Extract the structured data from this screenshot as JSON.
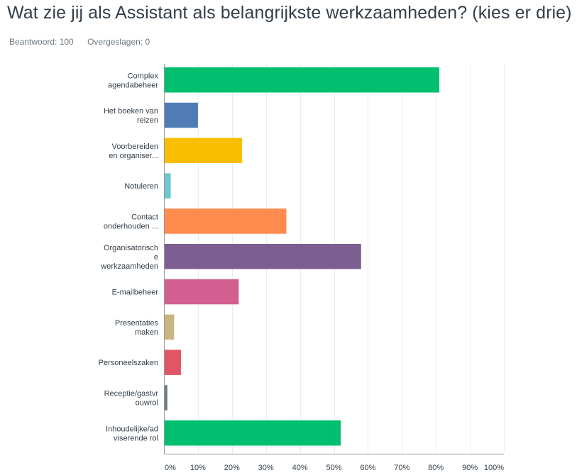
{
  "question": {
    "title": "Wat zie jij als Assistant als belangrijkste werkzaamheden? (kies er drie)",
    "answered": "Beantwoord: 100",
    "skipped": "Overgeslagen: 0"
  },
  "chart_data": {
    "type": "bar",
    "orientation": "horizontal",
    "grid": true,
    "xlim": [
      0,
      100
    ],
    "x_unit": "%",
    "x_ticks": [
      "0%",
      "10%",
      "20%",
      "30%",
      "40%",
      "50%",
      "60%",
      "70%",
      "80%",
      "90%",
      "100%"
    ],
    "categories": [
      {
        "label": [
          "Complex",
          "agendabeheer"
        ],
        "value": 81,
        "color": "#00bf6f"
      },
      {
        "label": [
          "Het boeken van",
          "reizen"
        ],
        "value": 10,
        "color": "#507cb6"
      },
      {
        "label": [
          "Voorbereiden",
          "en organiser..."
        ],
        "value": 23,
        "color": "#f9be00"
      },
      {
        "label": [
          "Notuleren"
        ],
        "value": 2,
        "color": "#6bc8cd"
      },
      {
        "label": [
          "Contact",
          "onderhouden ..."
        ],
        "value": 36,
        "color": "#ff8b4f"
      },
      {
        "label": [
          "Organisatorisch",
          "e",
          "werkzaamheden"
        ],
        "value": 58,
        "color": "#7d5e90"
      },
      {
        "label": [
          "E-mailbeheer"
        ],
        "value": 22,
        "color": "#d25f90"
      },
      {
        "label": [
          "Presentaties",
          "maken"
        ],
        "value": 3,
        "color": "#c8b580"
      },
      {
        "label": [
          "Personeelszaken"
        ],
        "value": 5,
        "color": "#e05666"
      },
      {
        "label": [
          "Receptie/gastvr",
          "ouwrol"
        ],
        "value": 1,
        "color": "#6f7b85"
      },
      {
        "label": [
          "Inhoudelijke/ad",
          "viserende rol"
        ],
        "value": 52,
        "color": "#00bf6f"
      }
    ]
  }
}
